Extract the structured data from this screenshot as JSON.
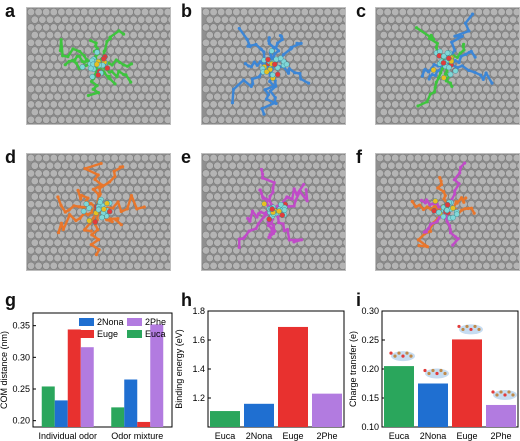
{
  "panel_labels": [
    "a",
    "b",
    "c",
    "d",
    "e",
    "f",
    "g",
    "h",
    "i"
  ],
  "snapshots": [
    {
      "label": "a",
      "adsorbate": "Euca",
      "ligand_color": "#3ec43e"
    },
    {
      "label": "b",
      "adsorbate": "2Nona",
      "ligand_color": "#3c86d6"
    },
    {
      "label": "c",
      "adsorbate": "mixture",
      "ligand_color": "#3c86d6",
      "ligand_color_2": "#3ec43e"
    },
    {
      "label": "d",
      "adsorbate": "Euge",
      "ligand_color": "#e8762c"
    },
    {
      "label": "e",
      "adsorbate": "2Phe",
      "ligand_color": "#c04bc8"
    },
    {
      "label": "f",
      "adsorbate": "mixture",
      "ligand_color": "#e8762c",
      "ligand_color_2": "#c04bc8"
    }
  ],
  "colors": {
    "Euca": "#2aa65c",
    "2Nona": "#1f6fd1",
    "Euge": "#e8312f",
    "2Phe": "#b27be0"
  },
  "chart_data": [
    {
      "panel": "g",
      "type": "bar",
      "categories": [
        "Individual odor",
        "Odor mixture"
      ],
      "series": [
        {
          "name": "Euca",
          "values": [
            0.254,
            0.221
          ]
        },
        {
          "name": "2Nona",
          "values": [
            0.232,
            0.265
          ]
        },
        {
          "name": "Euge",
          "values": [
            0.344,
            0.198
          ]
        },
        {
          "name": "2Phe",
          "values": [
            0.316,
            0.352
          ]
        }
      ],
      "ylabel": "COM distance (nm)",
      "ylim": [
        0.19,
        0.37
      ],
      "yticks": [
        0.2,
        0.25,
        0.3,
        0.35
      ],
      "legend": [
        "2Nona",
        "2Phe",
        "Euge",
        "Euca"
      ],
      "legend_position": "top-right"
    },
    {
      "panel": "h",
      "type": "bar",
      "categories": [
        "Euca",
        "2Nona",
        "Euge",
        "2Phe"
      ],
      "values": [
        1.11,
        1.16,
        1.69,
        1.23
      ],
      "ylabel": "Binding energy (eV)",
      "ylim": [
        1.0,
        1.8
      ],
      "yticks": [
        1.2,
        1.4,
        1.6,
        1.8
      ]
    },
    {
      "panel": "i",
      "type": "bar",
      "categories": [
        "Euca",
        "2Nona",
        "Euge",
        "2Phe"
      ],
      "values": [
        0.205,
        0.175,
        0.251,
        0.138
      ],
      "ylabel": "Charge transfer (e)",
      "ylim": [
        0.1,
        0.3
      ],
      "yticks": [
        0.1,
        0.15,
        0.2,
        0.25,
        0.3
      ]
    }
  ]
}
